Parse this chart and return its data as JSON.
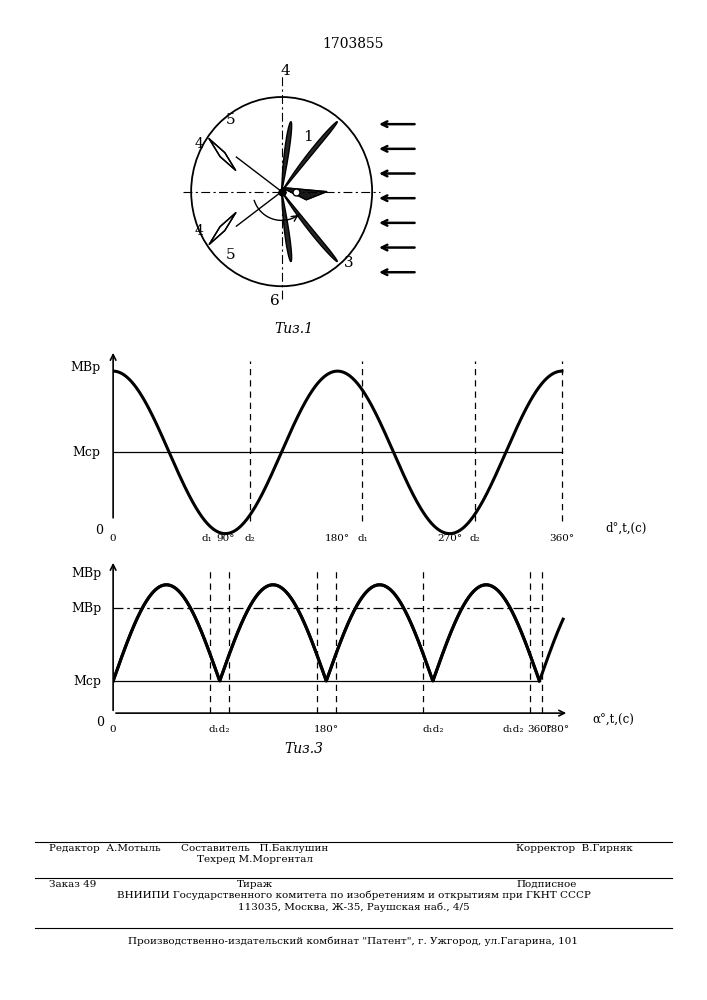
{
  "patent_number": "1703855",
  "fig1_caption": "Τиз.1",
  "fig3_caption": "Τиз.3",
  "graph1_ylabel_top": "Мвр",
  "graph1_ylabel_mcp": "Мср",
  "graph1_xlabel": "d°,t,(c)",
  "graph2_ylabel_top": "Мвр",
  "graph2_ylabel_mvr": "Мвр",
  "graph2_ylabel_mcp": "Мср",
  "graph2_xlabel": "α°,t,(c)",
  "footer_col1_r1": "Редактор  А.Мотыль",
  "footer_col2_r1a": "Составитель   П.Баклушин",
  "footer_col2_r1b": "Техред М.Моргентал",
  "footer_col3_r1": "Корректор  В.Гирняк",
  "footer_col1_r2": "Заказ 49",
  "footer_col2_r2": "Тираж",
  "footer_col3_r2": "Подписное",
  "footer_r3": "ВНИИПИ Государственного комитета по изобретениям и открытиям при ГКНТ СССР",
  "footer_r4": "113035, Москва, Ж-35, Раушская наб., 4/5",
  "footer_r5": "Производственно-издательский комбинат \"Патент\", г. Ужгород, ул.Гагарина, 101"
}
